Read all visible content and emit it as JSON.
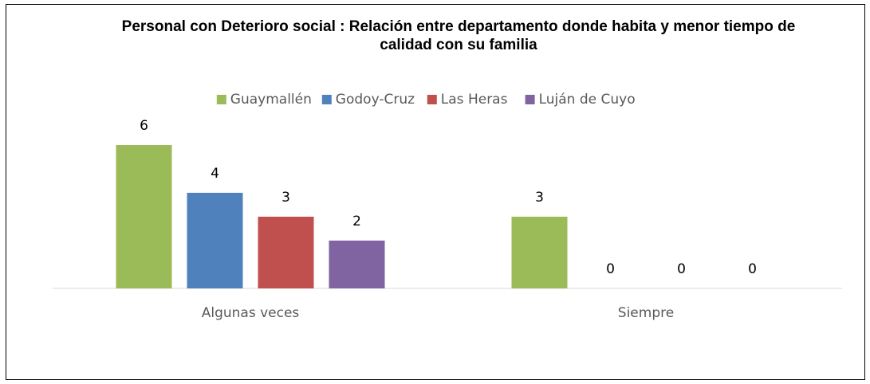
{
  "chart_data": {
    "type": "bar",
    "title": "Personal con Deterioro social : Relación entre departamento donde habita y menor tiempo de calidad con su familia",
    "categories": [
      "Algunas veces",
      "Siempre"
    ],
    "series": [
      {
        "name": "Guaymallén",
        "color": "#9bbb59",
        "values": [
          6,
          3
        ]
      },
      {
        "name": "Godoy-Cruz",
        "color": "#4f81bd",
        "values": [
          4,
          0
        ]
      },
      {
        "name": "Las Heras",
        "color": "#c0504d",
        "values": [
          3,
          0
        ]
      },
      {
        "name": "Luján de Cuyo",
        "color": "#8064a2",
        "values": [
          2,
          0
        ]
      }
    ],
    "ylim": [
      0,
      6
    ],
    "legend": "top"
  }
}
